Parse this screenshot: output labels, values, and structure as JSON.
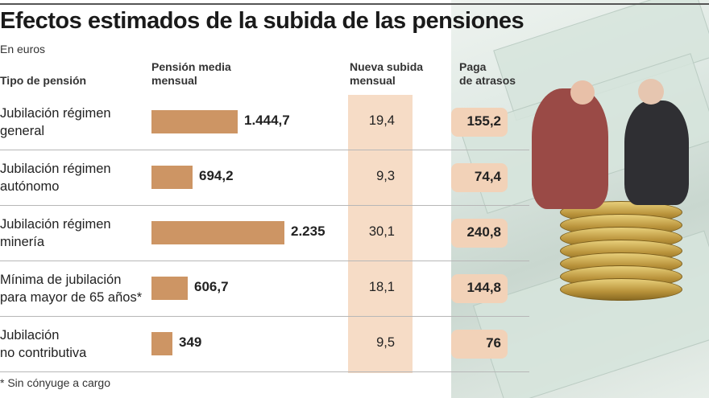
{
  "title": "Efectos estimados de la subida de las pensiones",
  "unit": "En euros",
  "headers": {
    "type": "Tipo de pensión",
    "mean_line1": "Pensión media",
    "mean_line2": "mensual",
    "rise_line1": "Nueva subida",
    "rise_line2": "mensual",
    "arrears_line1": "Paga",
    "arrears_line2": "de atrasos"
  },
  "footnote": "* Sin cónyuge a cargo",
  "colors": {
    "bar": "#cd9564",
    "band": "#f6dcc6",
    "pill": "#f2d2b8"
  },
  "chart_data": {
    "type": "table",
    "title": "Efectos estimados de la subida de las pensiones",
    "unit": "En euros",
    "columns": [
      "Tipo de pensión",
      "Pensión media mensual",
      "Nueva subida mensual",
      "Paga de atrasos"
    ],
    "rows": [
      {
        "type": "Jubilación régimen\ngeneral",
        "mean": 1444.7,
        "mean_label": "1.444,7",
        "rise": "19,4",
        "arrears": "155,2"
      },
      {
        "type": "Jubilación régimen\nautónomo",
        "mean": 694.2,
        "mean_label": "694,2",
        "rise": "9,3",
        "arrears": "74,4"
      },
      {
        "type": "Jubilación régimen\nminería",
        "mean": 2235,
        "mean_label": "2.235",
        "rise": "30,1",
        "arrears": "240,8"
      },
      {
        "type": "Mínima de jubilación\npara mayor de 65 años*",
        "mean": 606.7,
        "mean_label": "606,7",
        "rise": "18,1",
        "arrears": "144,8"
      },
      {
        "type": "Jubilación\nno contributiva",
        "mean": 349,
        "mean_label": "349",
        "rise": "9,5",
        "arrears": "76"
      }
    ],
    "bar_max": 2235
  }
}
